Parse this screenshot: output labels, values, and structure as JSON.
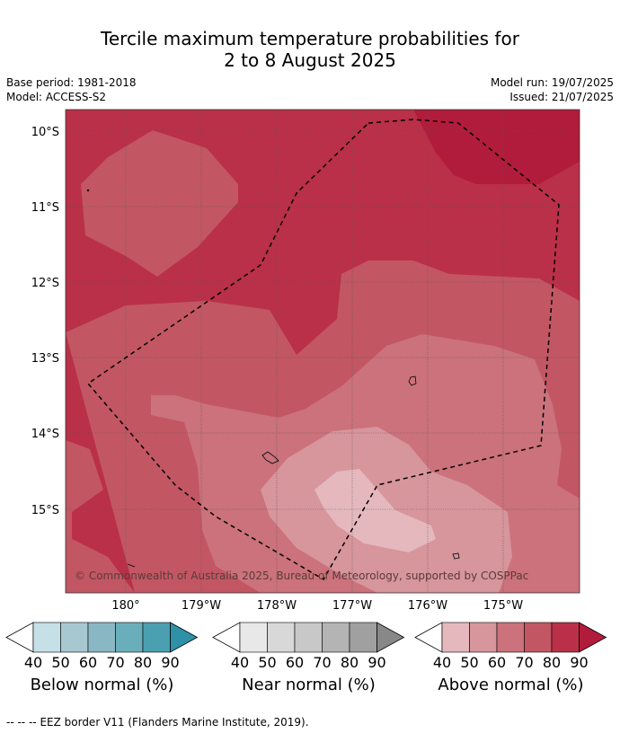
{
  "header": {
    "title_line1": "Tercile maximum temperature probabilities for",
    "title_line2": "2 to 8 August 2025",
    "base_period": "Base period: 1981-2018",
    "model": "Model: ACCESS-S2",
    "model_run": "Model run: 19/07/2025",
    "issued": "Issued: 21/07/2025"
  },
  "map": {
    "lat_labels": [
      "10°S",
      "11°S",
      "12°S",
      "13°S",
      "14°S",
      "15°S"
    ],
    "lon_labels": [
      "180°",
      "179°W",
      "178°W",
      "177°W",
      "176°W",
      "175°W"
    ],
    "copyright": "© Commonwealth of Australia 2025, Bureau of Meteorology, supported by COSPPac"
  },
  "colorbars": [
    {
      "title": "Below normal (%)",
      "ticks": [
        "40",
        "50",
        "60",
        "70",
        "80",
        "90"
      ],
      "colors": [
        "#c6e0e8",
        "#a7c8d0",
        "#89b8c4",
        "#6aaebb",
        "#4aa0b0",
        "#2e91a8"
      ]
    },
    {
      "title": "Near normal (%)",
      "ticks": [
        "40",
        "50",
        "60",
        "70",
        "80",
        "90"
      ],
      "colors": [
        "#e8e8e8",
        "#d8d8d8",
        "#c8c8c8",
        "#b4b4b4",
        "#a0a0a0",
        "#888888"
      ]
    },
    {
      "title": "Above normal (%)",
      "ticks": [
        "40",
        "50",
        "60",
        "70",
        "80",
        "90"
      ],
      "colors": [
        "#e4b8bd",
        "#d7959c",
        "#cb727c",
        "#c25763",
        "#ba3048",
        "#b21c3c"
      ]
    }
  ],
  "footer": {
    "legend_symbol": "--  --  --",
    "legend_text": "EEZ border V11 (Flanders Marine Institute, 2019)."
  }
}
